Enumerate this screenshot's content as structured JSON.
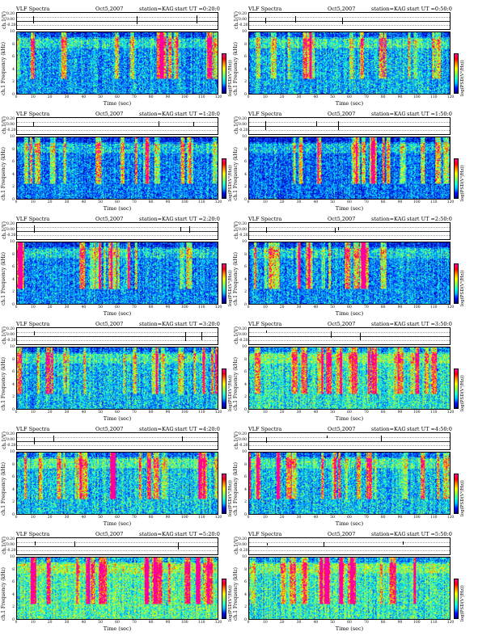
{
  "figure": {
    "header": {
      "left": "VLF Spectra",
      "date": "Oct5,2007",
      "station": "station=KAG",
      "start_prefix": "start  UT ="
    },
    "amplitude_label": "ch.1(V)",
    "amplitude_ticks": [
      "0.20",
      "0.00",
      "-0.20"
    ],
    "freq_label": "ch.1 Frequency (kHz)",
    "freq_ticks": [
      "10",
      "8",
      "6",
      "4",
      "2",
      "0"
    ],
    "time_label": "Time (sec)",
    "time_ticks": [
      "0",
      "10",
      "20",
      "30",
      "40",
      "50",
      "60",
      "70",
      "80",
      "90",
      "100",
      "110",
      "120"
    ],
    "colorbar_label": "log(PSD(V²/Hz))",
    "colorbar_ticks": [
      "-",
      "-"
    ],
    "colors": {
      "low": "#00008a",
      "mid": "#00c0ff",
      "high": "#ffff00",
      "peak": "#ff0000"
    }
  },
  "chart_data": [
    {
      "type": "heatmap",
      "start_time": "0:20:0",
      "x_range": [
        0,
        120
      ],
      "y_range": [
        0,
        10
      ],
      "intensity": 0.35
    },
    {
      "type": "heatmap",
      "start_time": "0:50:0",
      "x_range": [
        0,
        120
      ],
      "y_range": [
        0,
        10
      ],
      "intensity": 0.38
    },
    {
      "type": "heatmap",
      "start_time": "1:20:0",
      "x_range": [
        0,
        120
      ],
      "y_range": [
        0,
        10
      ],
      "intensity": 0.3
    },
    {
      "type": "heatmap",
      "start_time": "1:50:0",
      "x_range": [
        0,
        120
      ],
      "y_range": [
        0,
        10
      ],
      "intensity": 0.28
    },
    {
      "type": "heatmap",
      "start_time": "2:20:0",
      "x_range": [
        0,
        120
      ],
      "y_range": [
        0,
        10
      ],
      "intensity": 0.32
    },
    {
      "type": "heatmap",
      "start_time": "2:50:0",
      "x_range": [
        0,
        120
      ],
      "y_range": [
        0,
        10
      ],
      "intensity": 0.33
    },
    {
      "type": "heatmap",
      "start_time": "3:20:0",
      "x_range": [
        0,
        120
      ],
      "y_range": [
        0,
        10
      ],
      "intensity": 0.4
    },
    {
      "type": "heatmap",
      "start_time": "3:50:0",
      "x_range": [
        0,
        120
      ],
      "y_range": [
        0,
        10
      ],
      "intensity": 0.48
    },
    {
      "type": "heatmap",
      "start_time": "4:20:0",
      "x_range": [
        0,
        120
      ],
      "y_range": [
        0,
        10
      ],
      "intensity": 0.42
    },
    {
      "type": "heatmap",
      "start_time": "4:50:0",
      "x_range": [
        0,
        120
      ],
      "y_range": [
        0,
        10
      ],
      "intensity": 0.4
    },
    {
      "type": "heatmap",
      "start_time": "5:20:0",
      "x_range": [
        0,
        120
      ],
      "y_range": [
        0,
        10
      ],
      "intensity": 0.55
    },
    {
      "type": "heatmap",
      "start_time": "5:50:0",
      "x_range": [
        0,
        120
      ],
      "y_range": [
        0,
        10
      ],
      "intensity": 0.5
    }
  ]
}
